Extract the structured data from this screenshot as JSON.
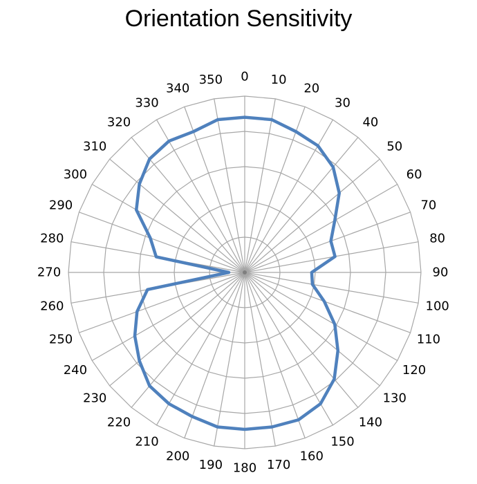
{
  "chart_data": {
    "type": "line",
    "subtype": "polar-radar",
    "title": "Orientation Sensitivity",
    "angle_labels": [
      "0",
      "10",
      "20",
      "30",
      "40",
      "50",
      "60",
      "70",
      "80",
      "90",
      "100",
      "110",
      "120",
      "130",
      "140",
      "150",
      "160",
      "170",
      "180",
      "190",
      "200",
      "210",
      "220",
      "230",
      "240",
      "250",
      "260",
      "270",
      "280",
      "290",
      "300",
      "310",
      "320",
      "330",
      "340",
      "350"
    ],
    "angles": [
      0,
      10,
      20,
      30,
      40,
      50,
      60,
      70,
      80,
      90,
      100,
      110,
      120,
      130,
      140,
      150,
      160,
      170,
      180,
      190,
      200,
      210,
      220,
      230,
      240,
      250,
      260,
      270,
      280,
      290,
      300,
      310,
      320,
      330,
      340,
      350
    ],
    "rlim": [
      0,
      1
    ],
    "grid_rings": 5,
    "grid": true,
    "legend": "none",
    "series": [
      {
        "color": "#4F81BD",
        "values": [
          0.88,
          0.88,
          0.85,
          0.83,
          0.78,
          0.7,
          0.59,
          0.52,
          0.52,
          0.38,
          0.39,
          0.48,
          0.59,
          0.69,
          0.79,
          0.86,
          0.89,
          0.89,
          0.89,
          0.89,
          0.87,
          0.86,
          0.84,
          0.78,
          0.72,
          0.65,
          0.56,
          0.09,
          0.51,
          0.57,
          0.71,
          0.78,
          0.84,
          0.86,
          0.85,
          0.88
        ]
      }
    ]
  },
  "colors": {
    "grid": "#A6A6A6",
    "series": "#4F81BD",
    "center": "#7F7F7F"
  }
}
